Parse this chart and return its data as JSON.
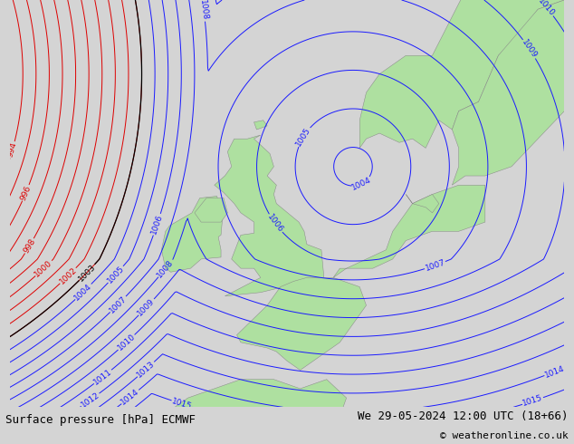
{
  "title_left": "Surface pressure [hPa] ECMWF",
  "title_right": "We 29-05-2024 12:00 UTC (18+66)",
  "copyright": "© weatheronline.co.uk",
  "bg_color": "#d4d4d4",
  "land_color": "#aee0a0",
  "contour_color_blue": "#1a1aff",
  "contour_color_red": "#dd0000",
  "contour_color_black": "#000000",
  "label_fontsize": 6.5,
  "footer_fontsize": 9,
  "lon_min": -22,
  "lon_max": 20,
  "lat_min": 44,
  "lat_max": 66
}
